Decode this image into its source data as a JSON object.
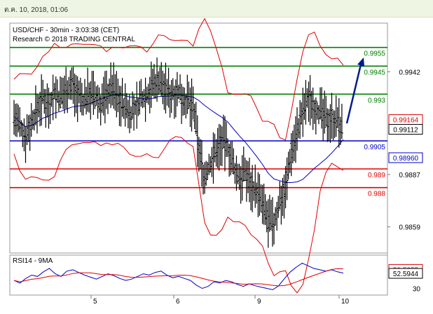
{
  "header": {
    "timestamp": "ต.ค. 10, 2018, 01:06"
  },
  "chart_data": {
    "type": "candlestick",
    "title": "USD/CHF - 30min - 3:03:38 (CET)",
    "subtitle": "Research © 2018 TRADING CENTRAL",
    "ylim": [
      0.9845,
      0.9968
    ],
    "y_ticks": [
      "0.9942",
      "0.9887",
      "0.9859"
    ],
    "x_ticks": [
      "5",
      "6",
      "9",
      "10"
    ],
    "levels": [
      {
        "value": 0.9955,
        "label": "0.9955",
        "color": "#008000"
      },
      {
        "value": 0.9945,
        "label": "0.9945",
        "color": "#008000"
      },
      {
        "value": 0.993,
        "label": "0.993",
        "color": "#008000"
      },
      {
        "value": 0.9905,
        "label": "0.9905",
        "color": "#0000c8"
      },
      {
        "value": 0.989,
        "label": "0.989",
        "color": "#e00000"
      },
      {
        "value": 0.988,
        "label": "0.988",
        "color": "#e00000"
      }
    ],
    "price_tags": [
      {
        "value": 0.99164,
        "label": "0.99164",
        "color": "#e00000"
      },
      {
        "value": 0.99112,
        "label": "0.99112",
        "color": "#000000"
      },
      {
        "value": 0.9896,
        "label": "0.98960",
        "color": "#0000c8"
      }
    ],
    "price_path": [
      0.9918,
      0.9912,
      0.9908,
      0.9915,
      0.9922,
      0.9928,
      0.9925,
      0.9931,
      0.9927,
      0.9933,
      0.9935,
      0.993,
      0.9926,
      0.9931,
      0.9928,
      0.9925,
      0.993,
      0.9934,
      0.9928,
      0.9924,
      0.992,
      0.9922,
      0.9928,
      0.993,
      0.9935,
      0.9938,
      0.9933,
      0.993,
      0.9932,
      0.9929,
      0.9926,
      0.9923,
      0.99,
      0.9885,
      0.9893,
      0.99,
      0.9905,
      0.9902,
      0.989,
      0.9885,
      0.9888,
      0.9882,
      0.9878,
      0.987,
      0.9862,
      0.986,
      0.9873,
      0.988,
      0.99,
      0.991,
      0.992,
      0.9928,
      0.9924,
      0.992,
      0.9916,
      0.9918,
      0.9915,
      0.9911
    ],
    "rsi": {
      "label": "RSI14 - 9MA",
      "ylim": [
        20,
        80
      ],
      "y_ticks": [
        "30"
      ],
      "rsi_tag": {
        "value": 52.5944,
        "label": "52.5944",
        "color": "#000000"
      },
      "ma_tag": {
        "value": 58.5255,
        "label": "58.5255",
        "color": "#e00000"
      },
      "values": [
        42,
        38,
        45,
        50,
        48,
        55,
        60,
        52,
        48,
        56,
        58,
        54,
        50,
        47,
        44,
        48,
        52,
        49,
        45,
        42,
        44,
        48,
        52,
        50,
        54,
        56,
        50,
        46,
        48,
        45,
        42,
        35,
        30,
        33,
        40,
        38,
        42,
        40,
        36,
        33,
        37,
        34,
        32,
        30,
        28,
        34,
        45,
        55,
        62,
        68,
        64,
        60,
        58,
        56,
        58,
        55,
        53
      ]
    }
  }
}
